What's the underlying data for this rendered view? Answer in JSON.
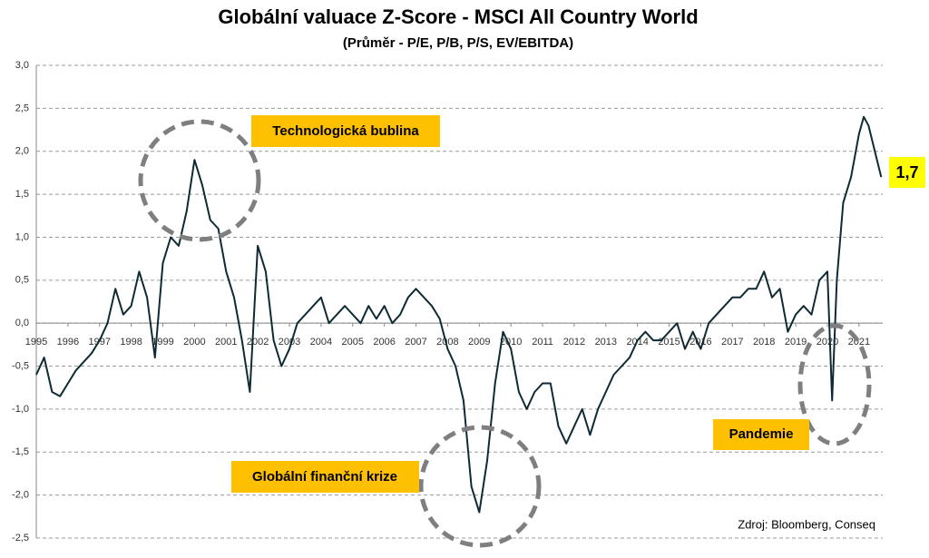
{
  "chart_data": {
    "type": "line",
    "title": "Globální valuace Z-Score - MSCI All Country World",
    "subtitle": "(Průměr - P/E, P/B, P/S, EV/EBITDA)",
    "annotations": [
      "Technologická bublina",
      "Globální finanční krize",
      "Pandemie"
    ],
    "last_value_label": "1,7",
    "source": "Zdroj: Bloomberg, Conseq",
    "grid": true,
    "xlim": [
      1995,
      2021.75
    ],
    "xticks": [
      1995,
      1996,
      1997,
      1998,
      1999,
      2000,
      2001,
      2002,
      2003,
      2004,
      2005,
      2006,
      2007,
      2008,
      2009,
      2010,
      2011,
      2012,
      2013,
      2014,
      2015,
      2016,
      2017,
      2018,
      2019,
      2020,
      2021
    ],
    "ylim": [
      -2.5,
      3.0
    ],
    "yticks": [
      {
        "value": 3.0,
        "label": "3,0"
      },
      {
        "value": 2.5,
        "label": "2,5"
      },
      {
        "value": 2.0,
        "label": "2,0"
      },
      {
        "value": 1.5,
        "label": "1,5"
      },
      {
        "value": 1.0,
        "label": "1,0"
      },
      {
        "value": 0.5,
        "label": "0,5"
      },
      {
        "value": 0.0,
        "label": "0,0"
      },
      {
        "value": -0.5,
        "label": "-0,5"
      },
      {
        "value": -1.0,
        "label": "-1,0"
      },
      {
        "value": -1.5,
        "label": "-1,5"
      },
      {
        "value": -2.0,
        "label": "-2,0"
      },
      {
        "value": -2.5,
        "label": "-2,5"
      }
    ],
    "x": [
      1995.0,
      1995.25,
      1995.5,
      1995.75,
      1996.0,
      1996.25,
      1996.5,
      1996.75,
      1997.0,
      1997.25,
      1997.5,
      1997.75,
      1998.0,
      1998.25,
      1998.5,
      1998.75,
      1999.0,
      1999.25,
      1999.5,
      1999.75,
      2000.0,
      2000.25,
      2000.5,
      2000.75,
      2001.0,
      2001.25,
      2001.5,
      2001.75,
      2002.0,
      2002.25,
      2002.5,
      2002.75,
      2003.0,
      2003.25,
      2003.5,
      2003.75,
      2004.0,
      2004.25,
      2004.5,
      2004.75,
      2005.0,
      2005.25,
      2005.5,
      2005.75,
      2006.0,
      2006.25,
      2006.5,
      2006.75,
      2007.0,
      2007.25,
      2007.5,
      2007.75,
      2008.0,
      2008.25,
      2008.5,
      2008.75,
      2009.0,
      2009.25,
      2009.5,
      2009.75,
      2010.0,
      2010.25,
      2010.5,
      2010.75,
      2011.0,
      2011.25,
      2011.5,
      2011.75,
      2012.0,
      2012.25,
      2012.5,
      2012.75,
      2013.0,
      2013.25,
      2013.5,
      2013.75,
      2014.0,
      2014.25,
      2014.5,
      2014.75,
      2015.0,
      2015.25,
      2015.5,
      2015.75,
      2016.0,
      2016.25,
      2016.5,
      2016.75,
      2017.0,
      2017.25,
      2017.5,
      2017.75,
      2018.0,
      2018.25,
      2018.5,
      2018.75,
      2019.0,
      2019.25,
      2019.5,
      2019.75,
      2020.0,
      2020.15,
      2020.3,
      2020.5,
      2020.75,
      2021.0,
      2021.15,
      2021.3,
      2021.5,
      2021.7
    ],
    "series": [
      {
        "color": "#0e2a33",
        "values": [
          -0.6,
          -0.4,
          -0.8,
          -0.85,
          -0.7,
          -0.55,
          -0.45,
          -0.35,
          -0.2,
          0.0,
          0.4,
          0.1,
          0.2,
          0.6,
          0.3,
          -0.4,
          0.7,
          1.0,
          0.9,
          1.3,
          1.9,
          1.6,
          1.2,
          1.1,
          0.6,
          0.3,
          -0.2,
          -0.8,
          0.9,
          0.6,
          -0.2,
          -0.5,
          -0.3,
          0.0,
          0.1,
          0.2,
          0.3,
          0.0,
          0.1,
          0.2,
          0.1,
          0.0,
          0.2,
          0.05,
          0.2,
          0.0,
          0.1,
          0.3,
          0.4,
          0.3,
          0.2,
          0.05,
          -0.3,
          -0.5,
          -0.9,
          -1.9,
          -2.2,
          -1.6,
          -0.7,
          -0.1,
          -0.3,
          -0.8,
          -1.0,
          -0.8,
          -0.7,
          -0.7,
          -1.2,
          -1.4,
          -1.2,
          -1.0,
          -1.3,
          -1.0,
          -0.8,
          -0.6,
          -0.5,
          -0.4,
          -0.2,
          -0.1,
          -0.2,
          -0.2,
          -0.1,
          0.0,
          -0.3,
          -0.1,
          -0.3,
          0.0,
          0.1,
          0.2,
          0.3,
          0.3,
          0.4,
          0.4,
          0.6,
          0.3,
          0.4,
          -0.1,
          0.1,
          0.2,
          0.1,
          0.5,
          0.6,
          -0.9,
          0.5,
          1.4,
          1.7,
          2.2,
          2.4,
          2.3,
          2.0,
          1.7
        ]
      }
    ]
  }
}
